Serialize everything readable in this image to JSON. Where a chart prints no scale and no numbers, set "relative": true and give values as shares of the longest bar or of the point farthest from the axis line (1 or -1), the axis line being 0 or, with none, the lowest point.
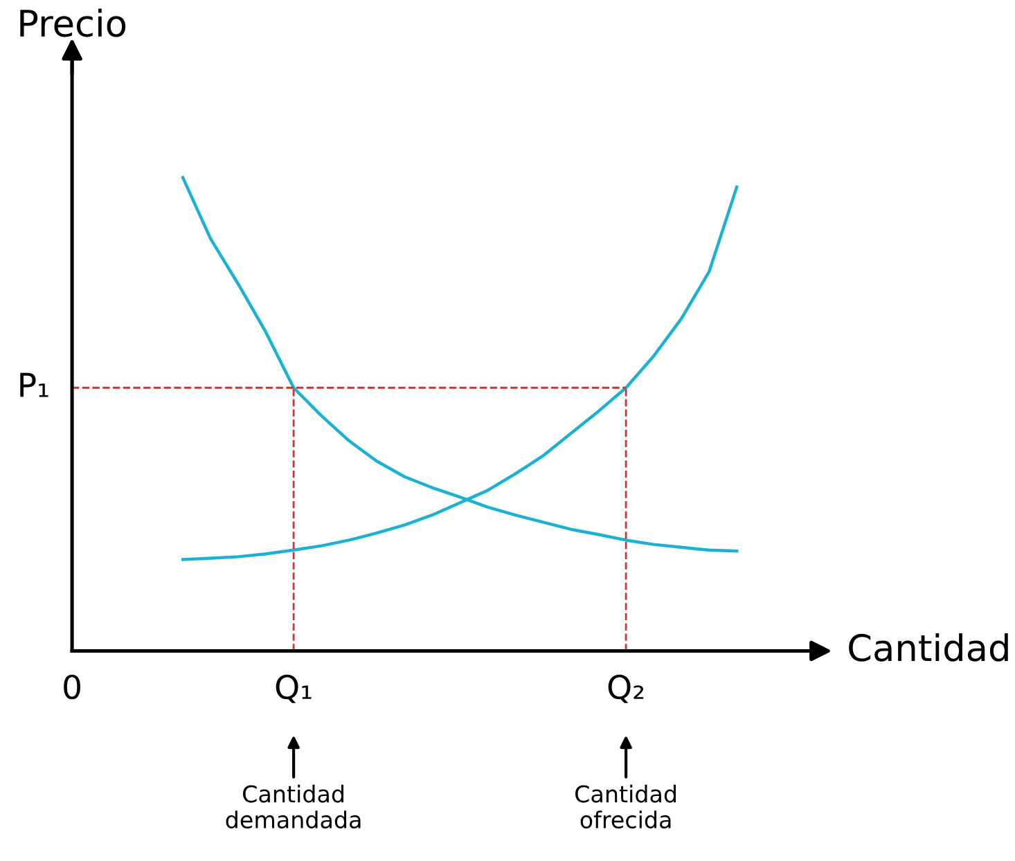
{
  "chart_data": {
    "type": "line",
    "relative": true,
    "xlabel": "Cantidad",
    "ylabel": "Precio",
    "categories": [
      "0",
      null,
      null,
      null,
      null,
      null,
      null,
      null,
      "Q₁",
      null,
      null,
      null,
      null,
      null,
      null,
      null,
      null,
      null,
      null,
      null,
      "Q₂",
      null,
      null,
      null,
      null,
      null,
      null
    ],
    "series": [
      {
        "color": "#1ab1d2",
        "values": [
          null,
          null,
          null,
          null,
          1.0,
          0.871,
          0.775,
          0.673,
          0.556,
          0.497,
          0.444,
          0.401,
          0.368,
          0.345,
          0.325,
          0.304,
          0.287,
          0.272,
          0.257,
          0.246,
          0.234,
          0.225,
          0.219,
          0.213,
          0.211,
          null,
          null
        ]
      },
      {
        "color": "#1ab1d2",
        "values": [
          null,
          null,
          null,
          null,
          0.193,
          0.196,
          0.199,
          0.205,
          0.213,
          0.222,
          0.234,
          0.249,
          0.266,
          0.287,
          0.313,
          0.339,
          0.374,
          0.412,
          0.459,
          0.506,
          0.556,
          0.623,
          0.702,
          0.801,
          0.98,
          null,
          null
        ]
      }
    ],
    "ref_lines": [
      {
        "axis": "y",
        "value": 0.556,
        "label": "P₁",
        "color": "#d7302c",
        "line_style": "dashed"
      },
      {
        "axis": "x",
        "value": "Q₁",
        "color": "#d7302c",
        "line_style": "dashed"
      },
      {
        "axis": "x",
        "value": "Q₂",
        "color": "#d7302c",
        "line_style": "dashed"
      }
    ],
    "annotations": [
      "Cantidad\ndemandada",
      "Cantidad\nofrecida"
    ],
    "grid": false,
    "legend": false,
    "marker": "none",
    "line_style": "solid"
  }
}
